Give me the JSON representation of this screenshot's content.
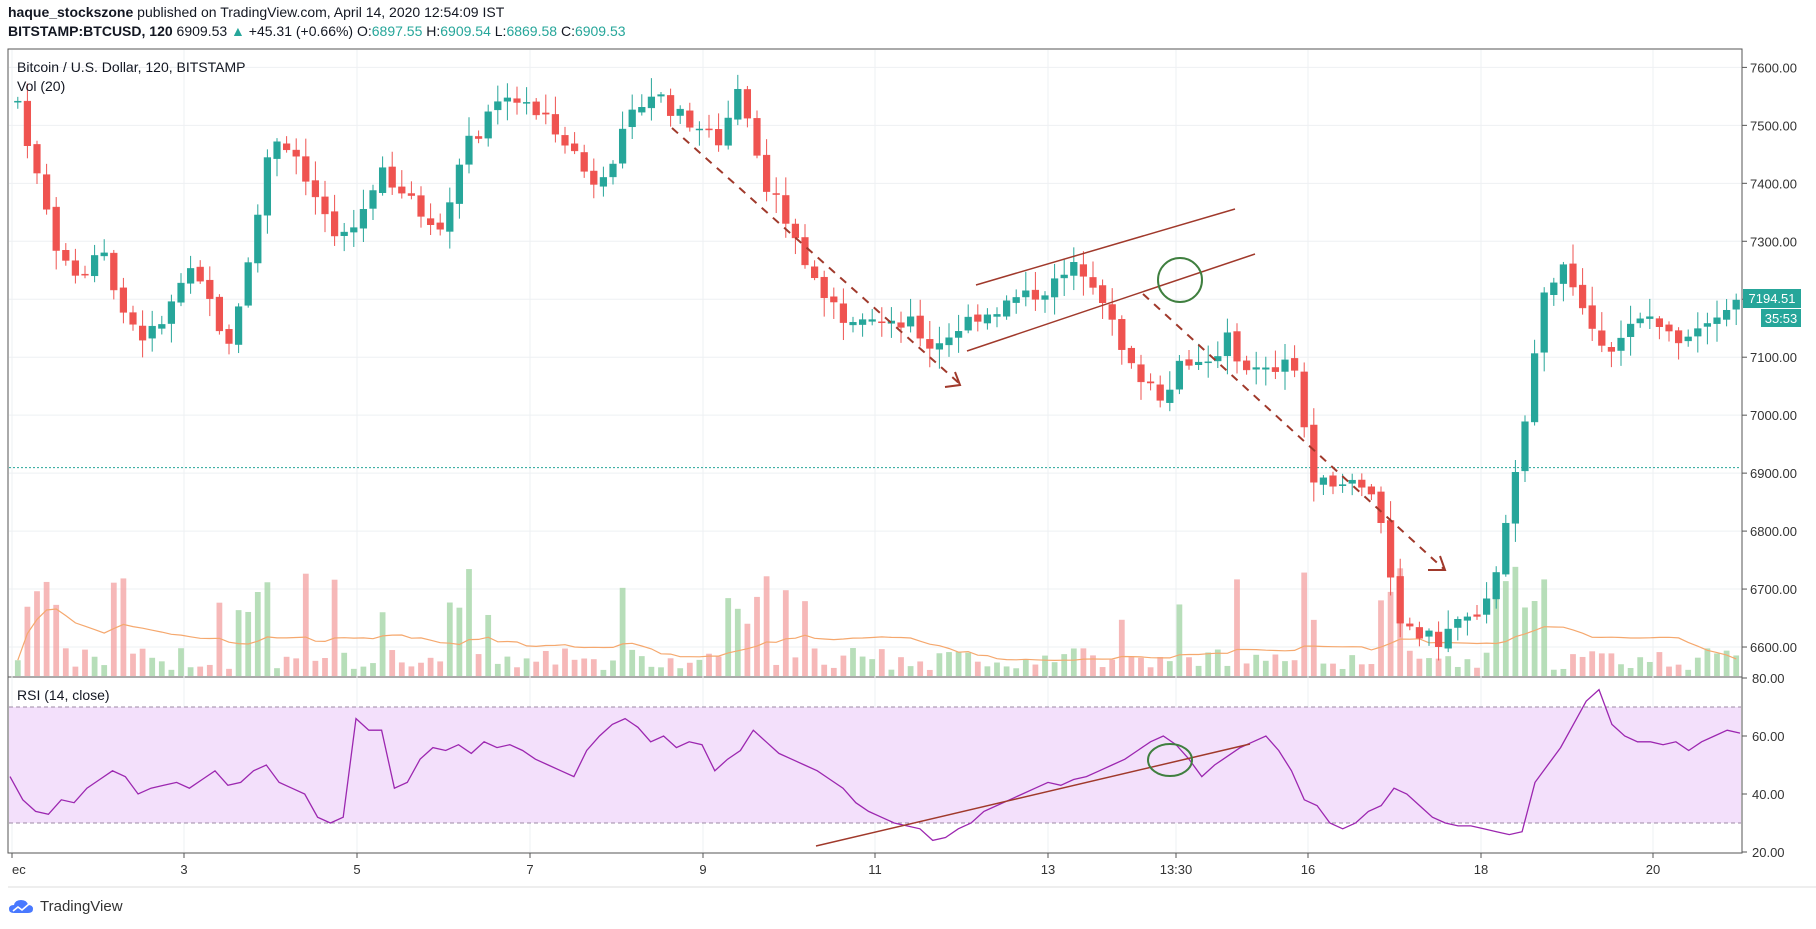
{
  "header": {
    "author": "haque_stockszone",
    "published_text": "published on TradingView.com, April 14, 2020 12:54:09 IST",
    "symbol": "BITSTAMP:BTCUSD, 120",
    "last": "6909.53",
    "arrow": "▲",
    "change": "+45.31 (+0.66%)",
    "o_label": "O:",
    "o": "6897.55",
    "h_label": "H:",
    "h": "6909.54",
    "l_label": "L:",
    "l": "6869.58",
    "c_label": "C:",
    "c": "6909.53"
  },
  "legend": {
    "title": "Bitcoin / U.S. Dollar, 120, BITSTAMP",
    "vol": "Vol (20)",
    "rsi": "RSI (14, close)"
  },
  "price_badge": {
    "value": "7194.51",
    "countdown": "35:53"
  },
  "footer": {
    "brand": "TradingView",
    "logo_icon": "tradingview-cloud-icon"
  },
  "colors": {
    "up": "#26a69a",
    "down": "#ef5350",
    "rsi": "#9c27b0",
    "rsi_band": "#f3e0fb",
    "vol_ma": "#f5a86e",
    "drawing": "#a0392b"
  },
  "chart_data": [
    {
      "type": "candlestick",
      "name": "Bitcoin / U.S. Dollar, 120, BITSTAMP",
      "ylim": [
        6550,
        7630
      ],
      "y_ticks": [
        "7600.00",
        "7500.00",
        "7400.00",
        "7300.00",
        "7200.00",
        "7100.00",
        "7000.00",
        "6900.00",
        "6800.00",
        "6700.00",
        "6600.00"
      ],
      "x_ticks": [
        "ec",
        "3",
        "5",
        "7",
        "9",
        "11",
        "13",
        "13:30",
        "16",
        "18",
        "20"
      ],
      "horizontal_line": 6909.53,
      "trend": [
        7540,
        7400,
        7270,
        7240,
        7280,
        7180,
        7130,
        7170,
        7250,
        7200,
        7110,
        7300,
        7480,
        7460,
        7380,
        7300,
        7330,
        7420,
        7390,
        7350,
        7330,
        7460,
        7500,
        7560,
        7530,
        7510,
        7470,
        7400,
        7440,
        7520,
        7560,
        7520,
        7500,
        7470,
        7560,
        7420,
        7350,
        7270,
        7210,
        7170,
        7180,
        7150,
        7160,
        7120,
        7140,
        7170,
        7180,
        7200,
        7210,
        7230,
        7260,
        7220,
        7110,
        7060,
        7030,
        7100,
        7090,
        7130,
        7080,
        7070,
        7120,
        6900,
        6870,
        6890,
        6870,
        6660,
        6620,
        6610,
        6650,
        6640,
        6780,
        6970,
        7220,
        7260,
        7160,
        7120,
        7150,
        7170,
        7130,
        7150,
        7180,
        7195
      ]
    },
    {
      "type": "bar",
      "name": "Vol (20)",
      "note": "volume histogram at bottom of price pane with moving average"
    },
    {
      "type": "line",
      "name": "RSI (14, close)",
      "ylim": [
        20,
        80
      ],
      "y_ticks": [
        "80.00",
        "60.00",
        "40.00",
        "20.00"
      ],
      "bands": [
        30,
        70
      ],
      "values": [
        46,
        38,
        34,
        33,
        38,
        37,
        42,
        45,
        48,
        46,
        40,
        42,
        43,
        44,
        42,
        45,
        48,
        43,
        44,
        48,
        50,
        44,
        42,
        40,
        32,
        30,
        32,
        66,
        62,
        62,
        42,
        44,
        52,
        56,
        55,
        57,
        54,
        58,
        56,
        57,
        55,
        52,
        50,
        48,
        46,
        55,
        60,
        64,
        66,
        63,
        58,
        60,
        56,
        58,
        57,
        48,
        52,
        55,
        62,
        58,
        54,
        52,
        50,
        48,
        45,
        42,
        37,
        34,
        32,
        30,
        29,
        28,
        24,
        25,
        28,
        30,
        34,
        36,
        38,
        40,
        42,
        44,
        43,
        45,
        46,
        48,
        50,
        52,
        55,
        58,
        60,
        57,
        52,
        46,
        50,
        53,
        56,
        58,
        60,
        55,
        48,
        38,
        36,
        30,
        28,
        30,
        34,
        36,
        42,
        40,
        36,
        32,
        30,
        29,
        29,
        28,
        27,
        26,
        27,
        44,
        50,
        56,
        64,
        72,
        76,
        64,
        60,
        58,
        58,
        57,
        58,
        55,
        58,
        60,
        62,
        61
      ]
    }
  ]
}
